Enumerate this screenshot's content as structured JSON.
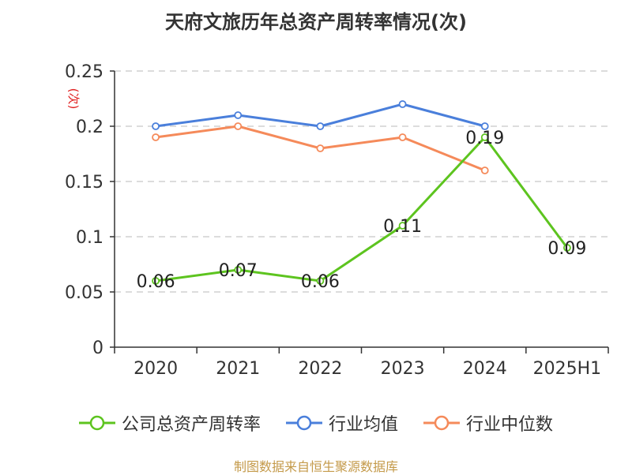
{
  "title": "天府文旅历年总资产周转率情况(次)",
  "source_note": "制图数据来自恒生聚源数据库",
  "chart_data": {
    "type": "line",
    "title": "天府文旅历年总资产周转率情况(次)",
    "ylabel": "(次)",
    "ylim": [
      0,
      0.25
    ],
    "yticks": [
      0,
      0.05,
      0.1,
      0.15,
      0.2,
      0.25
    ],
    "ytick_labels": [
      "0",
      "0.05",
      "0.1",
      "0.15",
      "0.2",
      "0.25"
    ],
    "categories": [
      "2020",
      "2021",
      "2022",
      "2023",
      "2024",
      "2025H1"
    ],
    "grid": true,
    "legend_position": "bottom",
    "series": [
      {
        "name": "公司总资产周转率",
        "color": "#5dc41f",
        "values": [
          0.06,
          0.07,
          0.06,
          0.11,
          0.19,
          0.09
        ],
        "labels": [
          "0.06",
          "0.07",
          "0.06",
          "0.11",
          "0.19",
          "0.09"
        ],
        "show_labels": true
      },
      {
        "name": "行业均值",
        "color": "#4a7fdb",
        "values": [
          0.2,
          0.21,
          0.2,
          0.22,
          0.2,
          null
        ],
        "show_labels": false
      },
      {
        "name": "行业中位数",
        "color": "#f58a5a",
        "values": [
          0.19,
          0.2,
          0.18,
          0.19,
          0.16,
          null
        ],
        "show_labels": false
      }
    ]
  }
}
